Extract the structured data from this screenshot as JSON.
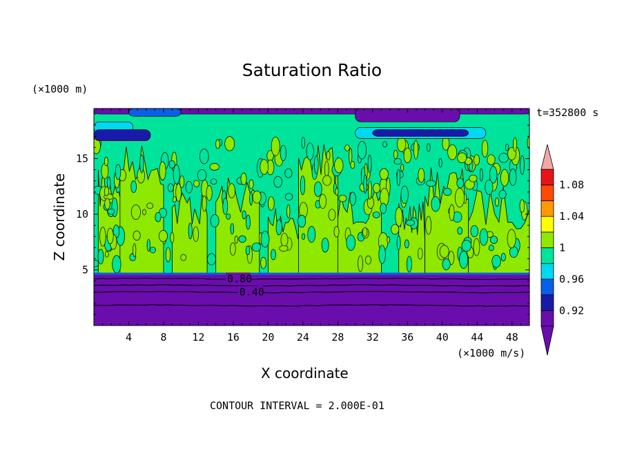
{
  "chart_data": {
    "type": "heatmap",
    "title": "Saturation Ratio",
    "xlabel": "X coordinate",
    "ylabel": "Z coordinate",
    "x_unit": "(×1000 m/s)",
    "y_unit": "(×1000 m)",
    "time_label": "t=352800 s",
    "footer": "CONTOUR INTERVAL = 2.000E-01",
    "xlim": [
      0,
      50
    ],
    "ylim": [
      0,
      19.5
    ],
    "x_ticks": [
      4,
      8,
      12,
      16,
      20,
      24,
      28,
      32,
      36,
      40,
      44,
      48
    ],
    "y_ticks": [
      5,
      10,
      15
    ],
    "contour_labels": [
      {
        "value": "0.80",
        "x": 15.3,
        "y": 4.2
      },
      {
        "value": "0.40",
        "x": 16.7,
        "y": 3.0
      }
    ],
    "colorbar": {
      "levels": [
        0.9,
        0.92,
        0.94,
        0.96,
        0.98,
        1.0,
        1.02,
        1.04,
        1.06,
        1.08,
        1.1
      ],
      "tick_labels": [
        "0.92",
        "0.96",
        "1",
        "1.04",
        "1.08"
      ],
      "colors": [
        "#6a0dad",
        "#1a1aa8",
        "#0a5ee8",
        "#00d8f0",
        "#00e39a",
        "#8ee800",
        "#ffff00",
        "#ff9900",
        "#ff4a00",
        "#e61414",
        "#f3a8a8"
      ]
    },
    "regions": {
      "lower_layer_top_z": 4.6,
      "lower_layer_value": "< 0.90",
      "middle_values": "0.98 to 1.02",
      "upper_layer_values": "0.90 to 0.98"
    }
  }
}
